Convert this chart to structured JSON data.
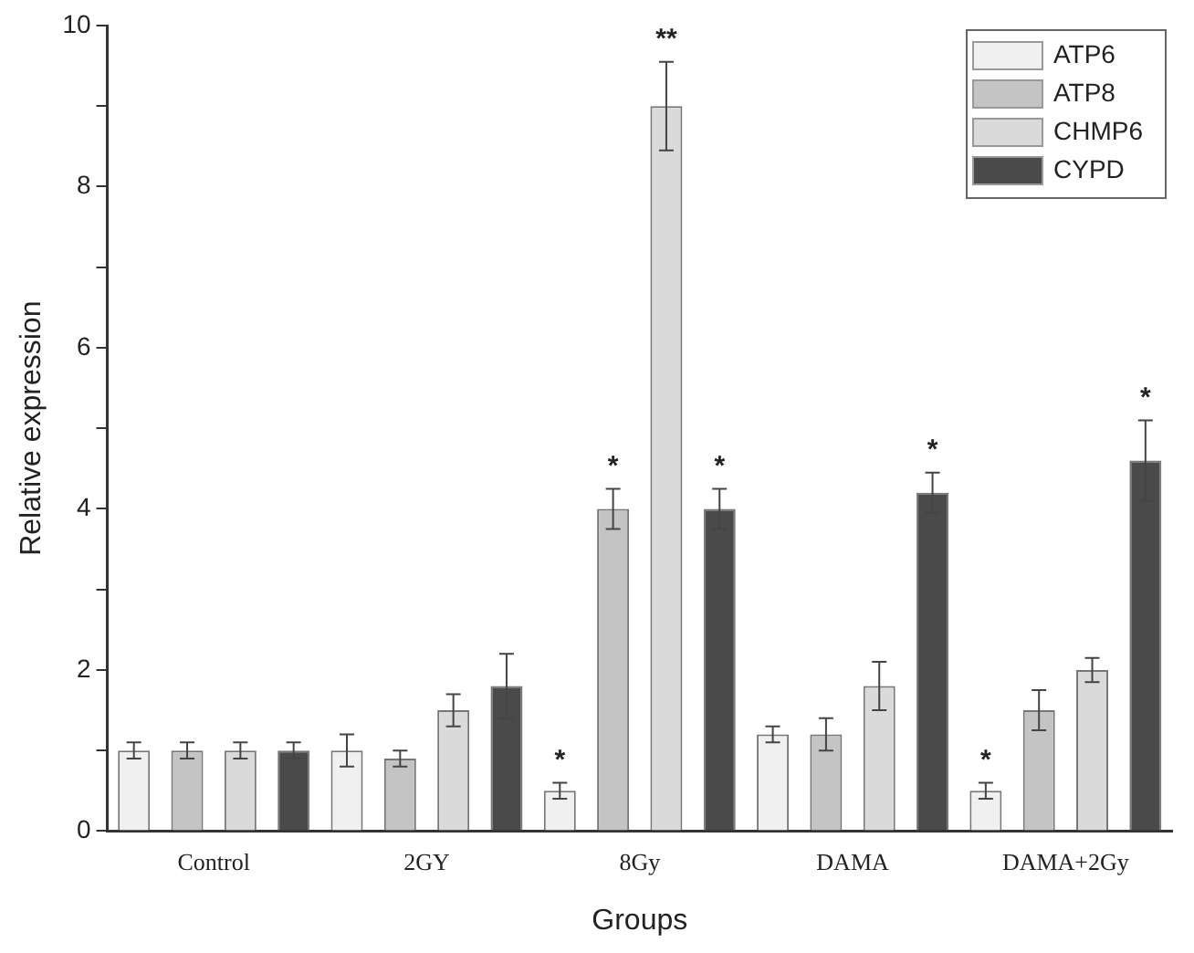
{
  "chart_data": {
    "type": "bar",
    "xlabel": "Groups",
    "ylabel": "Relative expression",
    "categories": [
      "Control",
      "2GY",
      "8Gy",
      "DAMA",
      "DAMA+2Gy"
    ],
    "series": [
      {
        "name": "ATP6",
        "color": "#f0f0f0",
        "values": [
          1.0,
          1.0,
          0.5,
          1.2,
          0.5
        ],
        "errors": [
          0.1,
          0.2,
          0.1,
          0.1,
          0.1
        ],
        "value_labels": [
          null,
          null,
          "*",
          null,
          "*"
        ]
      },
      {
        "name": "ATP8",
        "color": "#c4c4c4",
        "values": [
          1.0,
          0.9,
          4.0,
          1.2,
          1.5
        ],
        "errors": [
          0.1,
          0.1,
          0.25,
          0.2,
          0.25
        ],
        "value_labels": [
          null,
          null,
          "*",
          null,
          null
        ]
      },
      {
        "name": "CHMP6",
        "color": "#dadada",
        "values": [
          1.0,
          1.5,
          9.0,
          1.8,
          2.0
        ],
        "errors": [
          0.1,
          0.2,
          0.55,
          0.3,
          0.15
        ],
        "value_labels": [
          null,
          null,
          "**",
          null,
          null
        ]
      },
      {
        "name": "CYPD",
        "color": "#4a4a4a",
        "values": [
          1.0,
          1.8,
          4.0,
          4.2,
          4.6
        ],
        "errors": [
          0.1,
          0.4,
          0.25,
          0.25,
          0.5
        ],
        "value_labels": [
          null,
          null,
          "*",
          "*",
          "*"
        ]
      }
    ],
    "ylim": [
      0,
      10
    ],
    "yticks": [
      0,
      {
        "value": 1,
        "label": null
      },
      2,
      {
        "value": 3,
        "label": null
      },
      4,
      {
        "value": 5,
        "label": null
      },
      6,
      {
        "value": 7,
        "label": null
      },
      8,
      {
        "value": 9,
        "label": null
      },
      10
    ],
    "grid": false,
    "legend": "top right"
  }
}
